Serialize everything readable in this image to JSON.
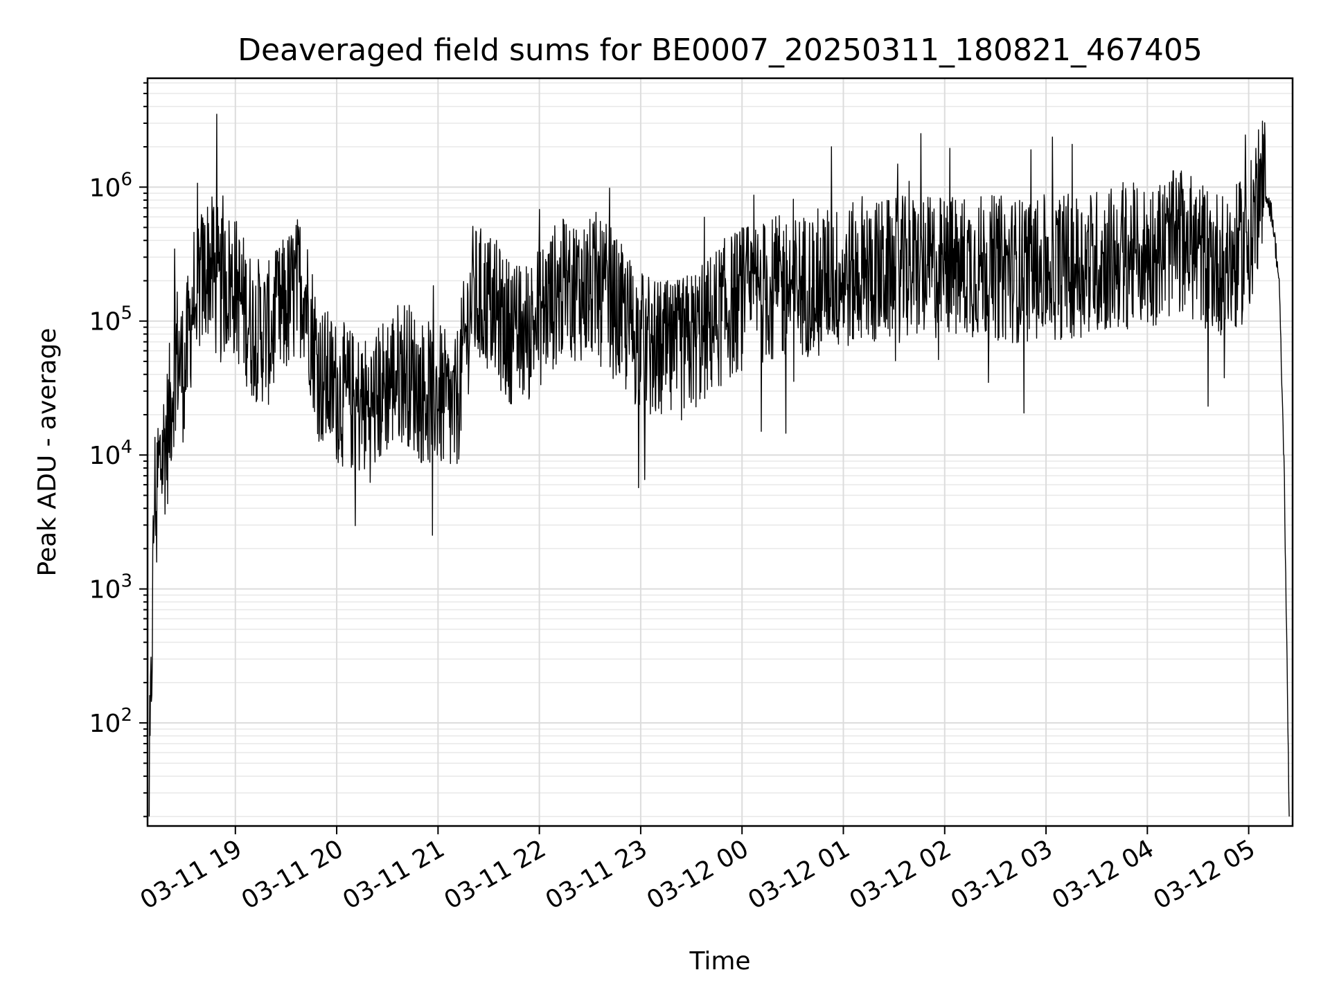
{
  "chart_data": {
    "type": "line",
    "title": "Deaveraged field sums for BE0007_20250311_180821_467405",
    "xlabel": "Time",
    "ylabel": "Peak ADU - average",
    "yscale": "log",
    "ylim": [
      17,
      6500000
    ],
    "xlim": [
      "2025-03-11 18:08",
      "2025-03-12 05:26"
    ],
    "grid": "on (major and minor)",
    "line_color": "#000000",
    "x_ticks": [
      "03-11 19",
      "03-11 20",
      "03-11 21",
      "03-11 22",
      "03-11 23",
      "03-12 00",
      "03-12 01",
      "03-12 02",
      "03-12 03",
      "03-12 04",
      "03-12 05"
    ],
    "x_tick_times": [
      "2025-03-11 19:00",
      "2025-03-11 20:00",
      "2025-03-11 21:00",
      "2025-03-11 22:00",
      "2025-03-11 23:00",
      "2025-03-12 00:00",
      "2025-03-12 01:00",
      "2025-03-12 02:00",
      "2025-03-12 03:00",
      "2025-03-12 04:00",
      "2025-03-12 05:00"
    ],
    "y_ticks": [
      {
        "base": "10",
        "exp": "2",
        "value": 100
      },
      {
        "base": "10",
        "exp": "3",
        "value": 1000
      },
      {
        "base": "10",
        "exp": "4",
        "value": 10000
      },
      {
        "base": "10",
        "exp": "5",
        "value": 100000
      },
      {
        "base": "10",
        "exp": "6",
        "value": 1000000
      }
    ],
    "series": [
      {
        "x": [
          "2025-03-11 18:09",
          "2025-03-11 18:12",
          "2025-03-11 18:15",
          "2025-03-11 18:20",
          "2025-03-11 18:25",
          "2025-03-11 18:30",
          "2025-03-11 18:35",
          "2025-03-11 18:40",
          "2025-03-11 18:45",
          "2025-03-11 18:50",
          "2025-03-11 18:55",
          "2025-03-11 19:00",
          "2025-03-11 19:10",
          "2025-03-11 19:20",
          "2025-03-11 19:30",
          "2025-03-11 19:40",
          "2025-03-11 19:50",
          "2025-03-11 20:00",
          "2025-03-11 20:10",
          "2025-03-11 20:20",
          "2025-03-11 20:30",
          "2025-03-11 20:40",
          "2025-03-11 20:50",
          "2025-03-11 21:00",
          "2025-03-11 21:10",
          "2025-03-11 21:20",
          "2025-03-11 21:30",
          "2025-03-11 21:40",
          "2025-03-11 21:50",
          "2025-03-11 22:00",
          "2025-03-11 22:10",
          "2025-03-11 22:20",
          "2025-03-11 22:30",
          "2025-03-11 22:40",
          "2025-03-11 22:50",
          "2025-03-11 23:00",
          "2025-03-11 23:10",
          "2025-03-11 23:20",
          "2025-03-11 23:30",
          "2025-03-11 23:40",
          "2025-03-11 23:50",
          "2025-03-12 00:00",
          "2025-03-12 00:15",
          "2025-03-12 00:30",
          "2025-03-12 00:45",
          "2025-03-12 01:00",
          "2025-03-12 01:15",
          "2025-03-12 01:30",
          "2025-03-12 01:45",
          "2025-03-12 02:00",
          "2025-03-12 02:15",
          "2025-03-12 02:30",
          "2025-03-12 02:45",
          "2025-03-12 03:00",
          "2025-03-12 03:15",
          "2025-03-12 03:30",
          "2025-03-12 03:45",
          "2025-03-12 04:00",
          "2025-03-12 04:10",
          "2025-03-12 04:20",
          "2025-03-12 04:30",
          "2025-03-12 04:40",
          "2025-03-12 04:50",
          "2025-03-12 05:00",
          "2025-03-12 05:05",
          "2025-03-12 05:10",
          "2025-03-12 05:14",
          "2025-03-12 05:18",
          "2025-03-12 05:21",
          "2025-03-12 05:24"
        ],
        "y": [
          20,
          5000,
          8000,
          15000,
          60000,
          40000,
          150000,
          200000,
          280000,
          150000,
          200000,
          180000,
          90000,
          80000,
          130000,
          200000,
          40000,
          30000,
          25000,
          22000,
          35000,
          45000,
          30000,
          28000,
          20000,
          150000,
          140000,
          90000,
          75000,
          110000,
          160000,
          180000,
          170000,
          150000,
          100000,
          70000,
          60000,
          55000,
          70000,
          90000,
          120000,
          150000,
          170000,
          180000,
          200000,
          210000,
          230000,
          240000,
          250000,
          250000,
          260000,
          250000,
          240000,
          250000,
          260000,
          280000,
          300000,
          310000,
          350000,
          400000,
          330000,
          280000,
          270000,
          380000,
          800000,
          950000,
          600000,
          200000,
          8000,
          20
        ]
      }
    ],
    "peaks": [
      {
        "x": "2025-03-11 18:49",
        "y": 3500000
      },
      {
        "x": "2025-03-12 00:53",
        "y": 2000000
      },
      {
        "x": "2025-03-12 02:03",
        "y": 1950000
      },
      {
        "x": "2025-03-12 02:51",
        "y": 1900000
      },
      {
        "x": "2025-03-12 04:58",
        "y": 2450000
      }
    ]
  }
}
